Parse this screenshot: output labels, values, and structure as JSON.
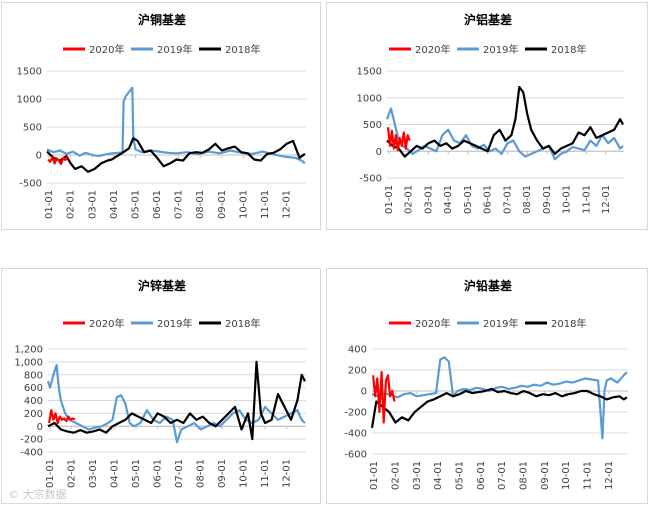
{
  "colors": {
    "2020": "#ff0000",
    "2019": "#5b9bd5",
    "2018": "#000000",
    "grid": "#d9d9d9",
    "axis": "#bfbfbf",
    "text": "#404040"
  },
  "watermark": "© 大宗数据",
  "chart_data": [
    {
      "type": "line",
      "title": "沪铜基差",
      "legend": [
        "2020年",
        "2019年",
        "2018年"
      ],
      "legend_position": "top",
      "x_ticks": [
        "01-01",
        "02-01",
        "03-01",
        "04-01",
        "05-01",
        "06-01",
        "07-01",
        "08-01",
        "09-01",
        "10-01",
        "11-01",
        "12-01"
      ],
      "y_ticks": [
        "-500",
        "0",
        "500",
        "1000",
        "1500"
      ],
      "ylim": [
        -500,
        1500
      ],
      "grid": true,
      "series": [
        {
          "name": "2020年",
          "x": [
            0.05,
            0.15,
            0.25,
            0.35,
            0.45,
            0.55,
            0.65,
            0.75,
            0.85,
            0.95
          ],
          "y": [
            -80,
            -120,
            -40,
            -150,
            -60,
            -100,
            -160,
            -50,
            -90,
            -30
          ]
        },
        {
          "name": "2019年",
          "x": [
            0,
            0.3,
            0.6,
            0.9,
            1.2,
            1.5,
            1.8,
            2.1,
            2.4,
            2.7,
            3.0,
            3.3,
            3.5,
            3.55,
            3.65,
            3.75,
            3.85,
            3.95,
            4.0,
            4.1,
            4.4,
            4.8,
            5.2,
            5.6,
            6.0,
            6.5,
            7.0,
            7.5,
            8.0,
            8.5,
            9.0,
            9.5,
            10.0,
            10.5,
            11.0,
            11.5,
            11.8,
            11.95
          ],
          "y": [
            100,
            50,
            80,
            20,
            60,
            -10,
            40,
            0,
            -20,
            10,
            30,
            40,
            50,
            950,
            1050,
            1100,
            1150,
            1200,
            300,
            100,
            50,
            80,
            60,
            40,
            30,
            50,
            20,
            60,
            30,
            80,
            40,
            20,
            60,
            10,
            -30,
            -50,
            -100,
            -150
          ]
        },
        {
          "name": "2018年",
          "x": [
            0,
            0.3,
            0.6,
            0.9,
            1.1,
            1.3,
            1.6,
            1.9,
            2.2,
            2.5,
            2.8,
            3.0,
            3.2,
            3.5,
            3.8,
            4.0,
            4.2,
            4.5,
            4.8,
            5.1,
            5.4,
            5.7,
            6.0,
            6.3,
            6.6,
            6.9,
            7.2,
            7.5,
            7.8,
            8.1,
            8.4,
            8.7,
            9.0,
            9.3,
            9.6,
            9.9,
            10.2,
            10.5,
            10.8,
            11.1,
            11.4,
            11.7,
            11.95
          ],
          "y": [
            60,
            -50,
            -100,
            -20,
            -150,
            -250,
            -200,
            -300,
            -250,
            -150,
            -100,
            -80,
            -30,
            40,
            120,
            300,
            250,
            50,
            80,
            -50,
            -200,
            -150,
            -80,
            -100,
            30,
            50,
            40,
            100,
            200,
            80,
            120,
            150,
            50,
            30,
            -80,
            -100,
            20,
            40,
            100,
            200,
            250,
            -50,
            20
          ]
        }
      ]
    },
    {
      "type": "line",
      "title": "沪铝基差",
      "legend": [
        "2020年",
        "2019年",
        "2018年"
      ],
      "legend_position": "top",
      "x_ticks": [
        "01-01",
        "02-01",
        "03-01",
        "04-01",
        "05-01",
        "06-01",
        "07-01",
        "08-01",
        "09-01",
        "10-01",
        "11-01",
        "12-01"
      ],
      "y_ticks": [
        "-500",
        "0",
        "500",
        "1000",
        "1500"
      ],
      "ylim": [
        -500,
        1500
      ],
      "grid": true,
      "series": [
        {
          "name": "2020年",
          "x": [
            0.05,
            0.15,
            0.25,
            0.35,
            0.45,
            0.55,
            0.65,
            0.75,
            0.85,
            0.95,
            1.05,
            1.15
          ],
          "y": [
            450,
            100,
            380,
            50,
            300,
            20,
            250,
            100,
            350,
            50,
            300,
            200
          ]
        },
        {
          "name": "2019年",
          "x": [
            0,
            0.2,
            0.4,
            0.6,
            0.8,
            1.0,
            1.3,
            1.6,
            1.9,
            2.2,
            2.5,
            2.8,
            3.1,
            3.4,
            3.7,
            4.0,
            4.3,
            4.6,
            4.9,
            5.2,
            5.5,
            5.8,
            6.1,
            6.4,
            6.7,
            7.0,
            7.3,
            7.6,
            7.9,
            8.2,
            8.5,
            8.8,
            9.1,
            9.4,
            9.7,
            10.0,
            10.3,
            10.6,
            10.9,
            11.2,
            11.5,
            11.8,
            11.95
          ],
          "y": [
            600,
            800,
            500,
            200,
            100,
            50,
            -50,
            20,
            100,
            50,
            0,
            300,
            400,
            200,
            150,
            300,
            100,
            50,
            120,
            0,
            50,
            -50,
            150,
            200,
            0,
            -100,
            -50,
            0,
            50,
            100,
            -150,
            -50,
            0,
            80,
            50,
            20,
            200,
            100,
            300,
            150,
            250,
            50,
            100
          ]
        },
        {
          "name": "2018年",
          "x": [
            0,
            0.3,
            0.6,
            0.9,
            1.2,
            1.5,
            1.8,
            2.1,
            2.4,
            2.7,
            3.0,
            3.3,
            3.6,
            3.9,
            4.2,
            4.5,
            4.8,
            5.1,
            5.4,
            5.7,
            6.0,
            6.3,
            6.5,
            6.7,
            6.9,
            7.1,
            7.3,
            7.6,
            7.9,
            8.2,
            8.5,
            8.8,
            9.1,
            9.4,
            9.7,
            10.0,
            10.3,
            10.6,
            10.9,
            11.2,
            11.5,
            11.8,
            11.95
          ],
          "y": [
            200,
            100,
            50,
            -100,
            0,
            100,
            50,
            150,
            200,
            100,
            150,
            50,
            100,
            200,
            150,
            100,
            50,
            0,
            300,
            400,
            200,
            300,
            600,
            1200,
            1100,
            700,
            400,
            200,
            50,
            100,
            -50,
            50,
            100,
            150,
            350,
            300,
            450,
            250,
            300,
            350,
            400,
            600,
            500
          ]
        }
      ]
    },
    {
      "type": "line",
      "title": "沪锌基差",
      "legend": [
        "2020年",
        "2019年",
        "2018年"
      ],
      "legend_position": "top",
      "x_ticks": [
        "01-01",
        "02-01",
        "03-01",
        "04-01",
        "05-01",
        "06-01",
        "07-01",
        "08-01",
        "09-01",
        "10-01",
        "11-01",
        "12-01"
      ],
      "y_ticks": [
        "-400",
        "-200",
        "0",
        "200",
        "400",
        "600",
        "800",
        "1,000",
        "1,200"
      ],
      "ylim": [
        -400,
        1200
      ],
      "grid": true,
      "series": [
        {
          "name": "2020年",
          "x": [
            0.05,
            0.15,
            0.25,
            0.35,
            0.45,
            0.55,
            0.65,
            0.75,
            0.85,
            0.95,
            1.05,
            1.15,
            1.25
          ],
          "y": [
            50,
            250,
            100,
            200,
            50,
            150,
            100,
            120,
            80,
            150,
            100,
            120,
            110
          ]
        },
        {
          "name": "2019年",
          "x": [
            0,
            0.1,
            0.25,
            0.4,
            0.5,
            0.6,
            0.8,
            1.0,
            1.3,
            1.6,
            1.9,
            2.2,
            2.5,
            2.8,
            3.0,
            3.2,
            3.4,
            3.6,
            3.8,
            4.0,
            4.3,
            4.6,
            4.9,
            5.2,
            5.5,
            5.8,
            6.0,
            6.2,
            6.5,
            6.8,
            7.1,
            7.4,
            7.7,
            8.0,
            8.3,
            8.6,
            8.9,
            9.2,
            9.5,
            9.8,
            10.1,
            10.4,
            10.7,
            11.0,
            11.3,
            11.6,
            11.8,
            11.95
          ],
          "y": [
            700,
            600,
            800,
            950,
            600,
            400,
            200,
            100,
            50,
            0,
            -50,
            -20,
            0,
            50,
            100,
            450,
            480,
            350,
            50,
            0,
            50,
            250,
            100,
            50,
            150,
            100,
            -250,
            -50,
            0,
            50,
            -50,
            0,
            50,
            0,
            100,
            200,
            250,
            100,
            50,
            100,
            300,
            200,
            100,
            150,
            200,
            250,
            100,
            50
          ]
        },
        {
          "name": "2018年",
          "x": [
            0,
            0.3,
            0.6,
            0.9,
            1.2,
            1.5,
            1.8,
            2.1,
            2.4,
            2.7,
            3.0,
            3.3,
            3.6,
            3.9,
            4.2,
            4.5,
            4.8,
            5.1,
            5.4,
            5.7,
            6.0,
            6.3,
            6.6,
            6.9,
            7.2,
            7.5,
            7.8,
            8.1,
            8.4,
            8.7,
            9.0,
            9.3,
            9.5,
            9.7,
            9.9,
            10.1,
            10.4,
            10.7,
            11.0,
            11.3,
            11.6,
            11.8,
            11.95
          ],
          "y": [
            0,
            50,
            -50,
            -80,
            -100,
            -60,
            -100,
            -80,
            -50,
            -100,
            0,
            50,
            100,
            200,
            150,
            100,
            50,
            200,
            150,
            50,
            100,
            50,
            200,
            100,
            150,
            50,
            0,
            100,
            200,
            300,
            -50,
            200,
            -200,
            1000,
            200,
            50,
            100,
            500,
            300,
            100,
            400,
            800,
            700
          ]
        }
      ]
    },
    {
      "type": "line",
      "title": "沪铅基差",
      "legend": [
        "2020年",
        "2019年",
        "2018年"
      ],
      "legend_position": "top",
      "x_ticks": [
        "01-01",
        "02-01",
        "03-01",
        "04-01",
        "05-01",
        "06-01",
        "07-01",
        "08-01",
        "09-01",
        "10-01",
        "11-01",
        "12-01"
      ],
      "y_ticks": [
        "-600",
        "-400",
        "-200",
        "0",
        "200",
        "400"
      ],
      "ylim": [
        -600,
        400
      ],
      "grid": true,
      "series": [
        {
          "name": "2020年",
          "x": [
            0.05,
            0.15,
            0.25,
            0.35,
            0.45,
            0.55,
            0.65,
            0.75,
            0.85,
            0.95,
            1.05
          ],
          "y": [
            150,
            -50,
            120,
            -200,
            180,
            -300,
            100,
            150,
            -50,
            0,
            -100
          ]
        },
        {
          "name": "2019年",
          "x": [
            0,
            0.3,
            0.6,
            0.9,
            1.2,
            1.5,
            1.8,
            2.1,
            2.4,
            2.7,
            3.0,
            3.2,
            3.4,
            3.6,
            3.8,
            4.0,
            4.3,
            4.6,
            4.9,
            5.2,
            5.5,
            5.8,
            6.1,
            6.4,
            6.7,
            7.0,
            7.3,
            7.6,
            7.9,
            8.2,
            8.5,
            8.8,
            9.1,
            9.4,
            9.7,
            10.0,
            10.3,
            10.6,
            10.8,
            10.9,
            11.0,
            11.2,
            11.5,
            11.8,
            11.95
          ],
          "y": [
            -30,
            -50,
            -20,
            -40,
            -60,
            -30,
            -20,
            -50,
            -40,
            -30,
            -20,
            300,
            320,
            280,
            -50,
            0,
            20,
            10,
            30,
            20,
            0,
            30,
            40,
            20,
            30,
            50,
            40,
            60,
            50,
            80,
            60,
            70,
            90,
            80,
            100,
            120,
            110,
            100,
            -450,
            0,
            100,
            120,
            80,
            150,
            180
          ]
        },
        {
          "name": "2018年",
          "x": [
            0,
            0.2,
            0.5,
            0.8,
            1.1,
            1.4,
            1.7,
            2.0,
            2.3,
            2.6,
            2.9,
            3.2,
            3.5,
            3.8,
            4.1,
            4.4,
            4.7,
            5.0,
            5.3,
            5.6,
            5.9,
            6.2,
            6.5,
            6.8,
            7.1,
            7.4,
            7.7,
            8.0,
            8.3,
            8.6,
            8.9,
            9.2,
            9.5,
            9.8,
            10.1,
            10.4,
            10.7,
            11.0,
            11.3,
            11.6,
            11.8,
            11.95
          ],
          "y": [
            -350,
            -100,
            -150,
            -200,
            -300,
            -250,
            -280,
            -200,
            -150,
            -100,
            -80,
            -50,
            -20,
            -50,
            -30,
            0,
            -20,
            -10,
            0,
            20,
            -10,
            0,
            -20,
            -30,
            0,
            -20,
            -50,
            -30,
            -40,
            -20,
            -50,
            -30,
            -20,
            0,
            0,
            -30,
            -50,
            -80,
            -60,
            -50,
            -80,
            -60
          ]
        }
      ]
    }
  ]
}
